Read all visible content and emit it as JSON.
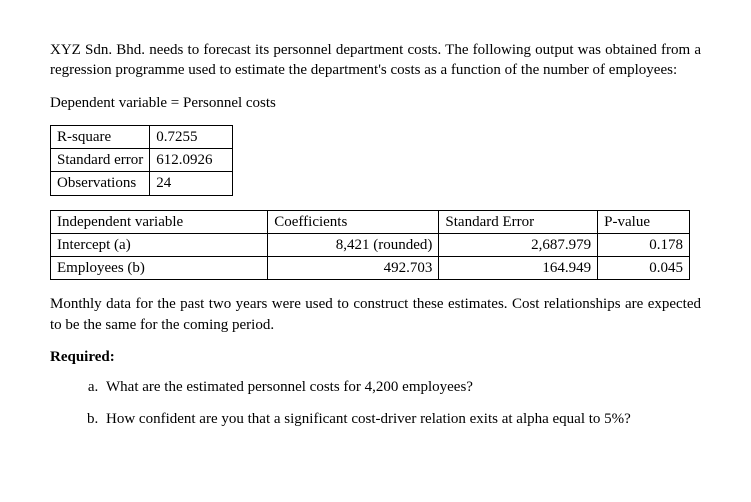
{
  "intro": "XYZ Sdn. Bhd. needs to forecast its personnel department costs. The following output was obtained from a regression programme used to estimate the department's costs as a function of the number of employees:",
  "dep_var_line": "Dependent variable = Personnel costs",
  "stats": {
    "rows": [
      {
        "label": "R-square",
        "value": "0.7255"
      },
      {
        "label": "Standard error",
        "value": "612.0926"
      },
      {
        "label": "Observations",
        "value": "24"
      }
    ]
  },
  "coef_table": {
    "headers": {
      "iv": "Independent variable",
      "coef": "Coefficients",
      "se": "Standard Error",
      "pv": "P-value"
    },
    "rows": [
      {
        "iv": "Intercept (a)",
        "coef": "8,421 (rounded)",
        "se": "2,687.979",
        "pv": "0.178"
      },
      {
        "iv": "Employees (b)",
        "coef": "492.703",
        "se": "164.949",
        "pv": "0.045"
      }
    ]
  },
  "post_text": "Monthly data for the past two years were used to construct these estimates. Cost relationships are expected to be the same for the coming period.",
  "required_label": "Required:",
  "questions": {
    "a": "What are the estimated personnel costs for 4,200 employees?",
    "b": "How confident are you that a significant cost-driver relation exits at alpha equal to 5%?"
  }
}
